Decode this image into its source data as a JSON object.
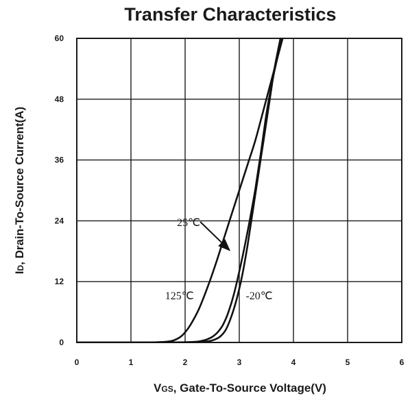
{
  "chart_data": {
    "type": "line",
    "title": "Transfer Characteristics",
    "xlabel_main": "V",
    "xlabel_sub": "GS",
    "xlabel_rest": ", Gate-To-Source Voltage(V)",
    "ylabel_main": "I",
    "ylabel_sub": "D",
    "ylabel_rest": ", Drain-To-Source Current(A)",
    "xlim": [
      0,
      6
    ],
    "ylim": [
      0,
      60
    ],
    "x_ticks": [
      "0",
      "1",
      "2",
      "3",
      "4",
      "5",
      "6"
    ],
    "y_ticks": [
      "0",
      "12",
      "24",
      "36",
      "48",
      "60"
    ],
    "grid": true,
    "series": [
      {
        "name": "125℃",
        "x": [
          0,
          1.0,
          1.5,
          1.75,
          1.9,
          2.0,
          2.1,
          2.25,
          2.4,
          2.55,
          2.7,
          2.85,
          3.0,
          3.15,
          3.3,
          3.45,
          3.6,
          3.75,
          3.85
        ],
        "y": [
          0,
          0,
          0.05,
          0.3,
          1.0,
          2.0,
          3.5,
          6.5,
          10.5,
          15.0,
          20.0,
          25.0,
          30.0,
          35.0,
          40.0,
          46.0,
          52.0,
          58.0,
          62.0
        ]
      },
      {
        "name": "25℃",
        "x": [
          0,
          1.5,
          2.0,
          2.25,
          2.4,
          2.5,
          2.6,
          2.7,
          2.8,
          2.9,
          3.0,
          3.1,
          3.2,
          3.3,
          3.4,
          3.5,
          3.6,
          3.7,
          3.82
        ],
        "y": [
          0,
          0,
          0.05,
          0.2,
          0.6,
          1.1,
          2.0,
          3.5,
          6.0,
          9.5,
          14.0,
          19.0,
          24.5,
          30.5,
          37.5,
          45.0,
          51.0,
          56.0,
          61.0
        ]
      },
      {
        "name": "-20℃",
        "x": [
          0,
          1.5,
          2.0,
          2.4,
          2.55,
          2.65,
          2.75,
          2.85,
          2.95,
          3.05,
          3.15,
          3.25,
          3.35,
          3.45,
          3.55,
          3.65,
          3.75,
          3.8
        ],
        "y": [
          0,
          0,
          0.02,
          0.2,
          0.6,
          1.2,
          2.5,
          5.0,
          8.5,
          13.0,
          19.0,
          26.0,
          33.0,
          40.0,
          47.0,
          54.0,
          59.5,
          62.0
        ]
      }
    ],
    "annotations": [
      {
        "text": "25℃",
        "x": 1.85,
        "y": 23.0
      },
      {
        "text": "125℃",
        "x": 1.63,
        "y": 8.5
      },
      {
        "text": "-20℃",
        "x": 3.12,
        "y": 8.5
      }
    ],
    "arrow": {
      "from": [
        2.28,
        23.8
      ],
      "to": [
        2.82,
        18.2
      ],
      "refers_to": "25℃"
    }
  }
}
